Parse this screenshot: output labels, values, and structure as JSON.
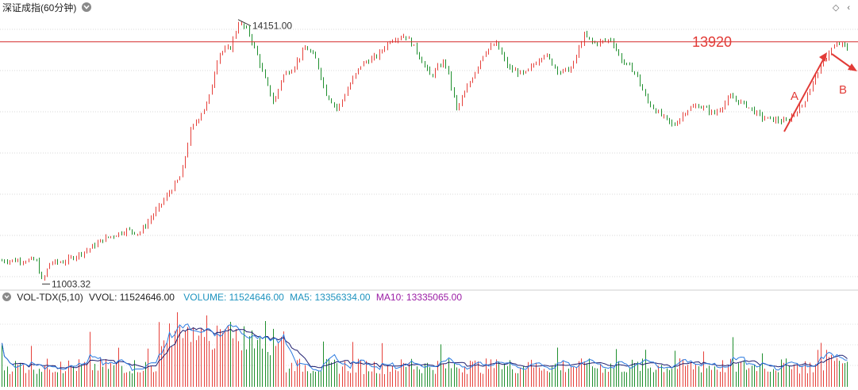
{
  "header": {
    "title": "深证成指(60分钟)",
    "dropdown_icon": "chevron-down-icon",
    "right_icons": [
      "diamond-icon",
      "chevron-left-icon"
    ]
  },
  "colors": {
    "up": "#e6413b",
    "down": "#1f8f2e",
    "level_line": "#d62b2b",
    "annotation": "#e23b37",
    "ma5": "#2c7be0",
    "ma10": "#1c1c6e"
  },
  "chart_data": {
    "type": "candlestick",
    "price_range": [
      10950,
      14350
    ],
    "level_line": 13920,
    "level_label": "13920",
    "high_label": "14151.00",
    "low_label": "11003.32",
    "annotations": [
      {
        "label": "A"
      },
      {
        "label": "B"
      }
    ],
    "price_path": [
      [
        0,
        11270
      ],
      [
        45,
        11275
      ],
      [
        53,
        11005
      ],
      [
        62,
        11240
      ],
      [
        80,
        11255
      ],
      [
        110,
        11400
      ],
      [
        130,
        11530
      ],
      [
        160,
        11640
      ],
      [
        175,
        11600
      ],
      [
        200,
        11920
      ],
      [
        228,
        12300
      ],
      [
        240,
        12850
      ],
      [
        262,
        13200
      ],
      [
        275,
        13780
      ],
      [
        290,
        13850
      ],
      [
        300,
        14151
      ],
      [
        312,
        14050
      ],
      [
        322,
        13800
      ],
      [
        335,
        13420
      ],
      [
        345,
        13170
      ],
      [
        355,
        13500
      ],
      [
        368,
        13600
      ],
      [
        385,
        13860
      ],
      [
        398,
        13700
      ],
      [
        410,
        13300
      ],
      [
        425,
        13100
      ],
      [
        440,
        13400
      ],
      [
        455,
        13650
      ],
      [
        475,
        13750
      ],
      [
        492,
        13950
      ],
      [
        510,
        14000
      ],
      [
        522,
        13850
      ],
      [
        542,
        13500
      ],
      [
        560,
        13700
      ],
      [
        575,
        13100
      ],
      [
        590,
        13400
      ],
      [
        610,
        13800
      ],
      [
        625,
        13900
      ],
      [
        640,
        13600
      ],
      [
        660,
        13520
      ],
      [
        685,
        13780
      ],
      [
        705,
        13550
      ],
      [
        720,
        13600
      ],
      [
        735,
        14000
      ],
      [
        748,
        13900
      ],
      [
        770,
        13950
      ],
      [
        782,
        13700
      ],
      [
        800,
        13550
      ],
      [
        815,
        13200
      ],
      [
        830,
        13050
      ],
      [
        848,
        12900
      ],
      [
        865,
        13100
      ],
      [
        880,
        13150
      ],
      [
        900,
        13050
      ],
      [
        920,
        13250
      ],
      [
        940,
        13150
      ],
      [
        960,
        13000
      ],
      [
        990,
        12950
      ],
      [
        1010,
        13150
      ],
      [
        1030,
        13550
      ],
      [
        1045,
        13820
      ],
      [
        1058,
        13900
      ],
      [
        1070,
        13820
      ]
    ],
    "volume_panel": {
      "label": "VOL-TDX(5,10)",
      "vvol": "VVOL: 11524646.00",
      "volume": "VOLUME: 11524646.00",
      "ma5": "MA5: 13356334.00",
      "ma10": "MA10: 13335065.00"
    }
  }
}
